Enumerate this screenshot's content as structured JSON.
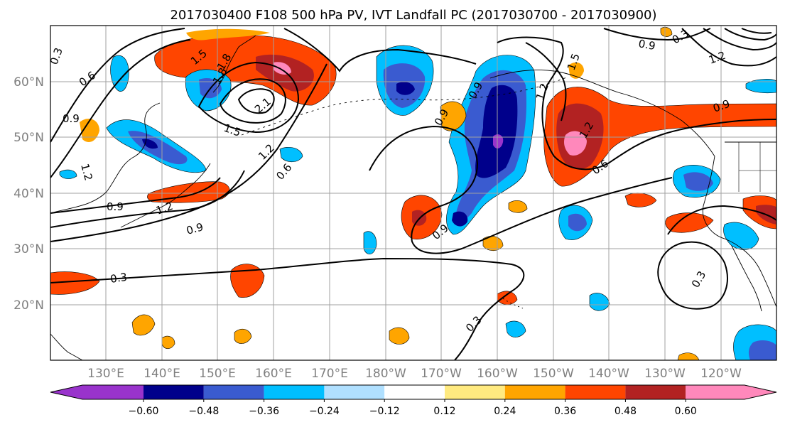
{
  "title": "2017030400 F108 500 hPa PV, IVT Landfall PC (2017030700 - 2017030900)",
  "lat_ticks": [
    "60°N",
    "50°N",
    "40°N",
    "30°N",
    "20°N"
  ],
  "lon_ticks": [
    "130°E",
    "140°E",
    "150°E",
    "160°E",
    "170°E",
    "180°W",
    "170°W",
    "160°W",
    "150°W",
    "140°W",
    "130°W",
    "120°W"
  ],
  "colorbar": {
    "colors": [
      "#9933cc",
      "#00008b",
      "#3a5bd0",
      "#00bfff",
      "#b0e0ff",
      "#ffffff",
      "#ffea80",
      "#ffa500",
      "#ff4500",
      "#b22222",
      "#ff88bb"
    ],
    "under_color": "#9933cc",
    "over_color": "#ff88bb",
    "tick_labels": [
      "−0.60",
      "−0.48",
      "−0.36",
      "−0.24",
      "−0.12",
      "0.12",
      "0.24",
      "0.36",
      "0.48",
      "0.60"
    ]
  },
  "contour_labels": [
    "0.3",
    "0.6",
    "0.9",
    "1.2",
    "1.5",
    "1.8",
    "2.1",
    "0.9",
    "0.9",
    "0.9",
    "1.2",
    "0.3",
    "0.6",
    "0.9",
    "1.2",
    "0.3",
    "0.3",
    "0.9",
    "0.9",
    "1.2",
    "0.9",
    "1.5",
    "1.5",
    "1.2",
    "1.2",
    "0.6",
    "1.8",
    "0.3"
  ]
}
